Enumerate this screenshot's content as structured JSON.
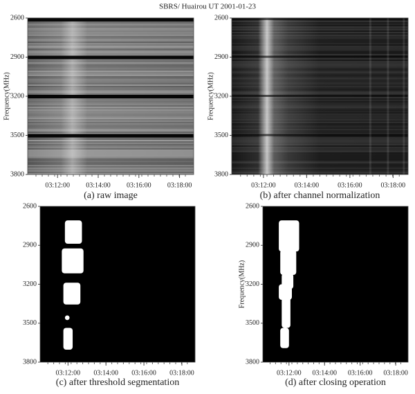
{
  "title": "SBRS/ Huairou UT   2001-01-23",
  "chart_data": [
    {
      "type": "image",
      "caption": "(a) raw image",
      "ylabel": "Frequency(MHz)",
      "ylim": [
        2600,
        3800
      ],
      "yticks": [
        2600,
        2900,
        3200,
        3500,
        3800
      ],
      "xticks": [
        "03:12:00",
        "03:14:00",
        "03:16:00",
        "03:18:00"
      ]
    },
    {
      "type": "image",
      "caption": "(b) after channel normalization",
      "ylabel": "Frequency(MHz)",
      "ylim": [
        2600,
        3800
      ],
      "yticks": [
        2600,
        2900,
        3200,
        3500,
        3800
      ],
      "xticks": [
        "03:12:00",
        "03:14:00",
        "03:16:00",
        "03:18:00"
      ]
    },
    {
      "type": "image",
      "caption": "(c) after threshold segmentation",
      "ylim": [
        2600,
        3800
      ],
      "yticks": [
        2600,
        2900,
        3200,
        3500,
        3800
      ],
      "xticks": [
        "03:12:00",
        "03:14:00",
        "03:16:00",
        "03:18:00"
      ]
    },
    {
      "type": "image",
      "caption": "(d) after closing operation",
      "ylabel": "Frequency(MHz)",
      "ylim": [
        2600,
        3800
      ],
      "yticks": [
        2600,
        2900,
        3200,
        3500,
        3800
      ],
      "xticks": [
        "03:12:00",
        "03:14:00",
        "03:16:00",
        "03:18:00"
      ]
    }
  ]
}
